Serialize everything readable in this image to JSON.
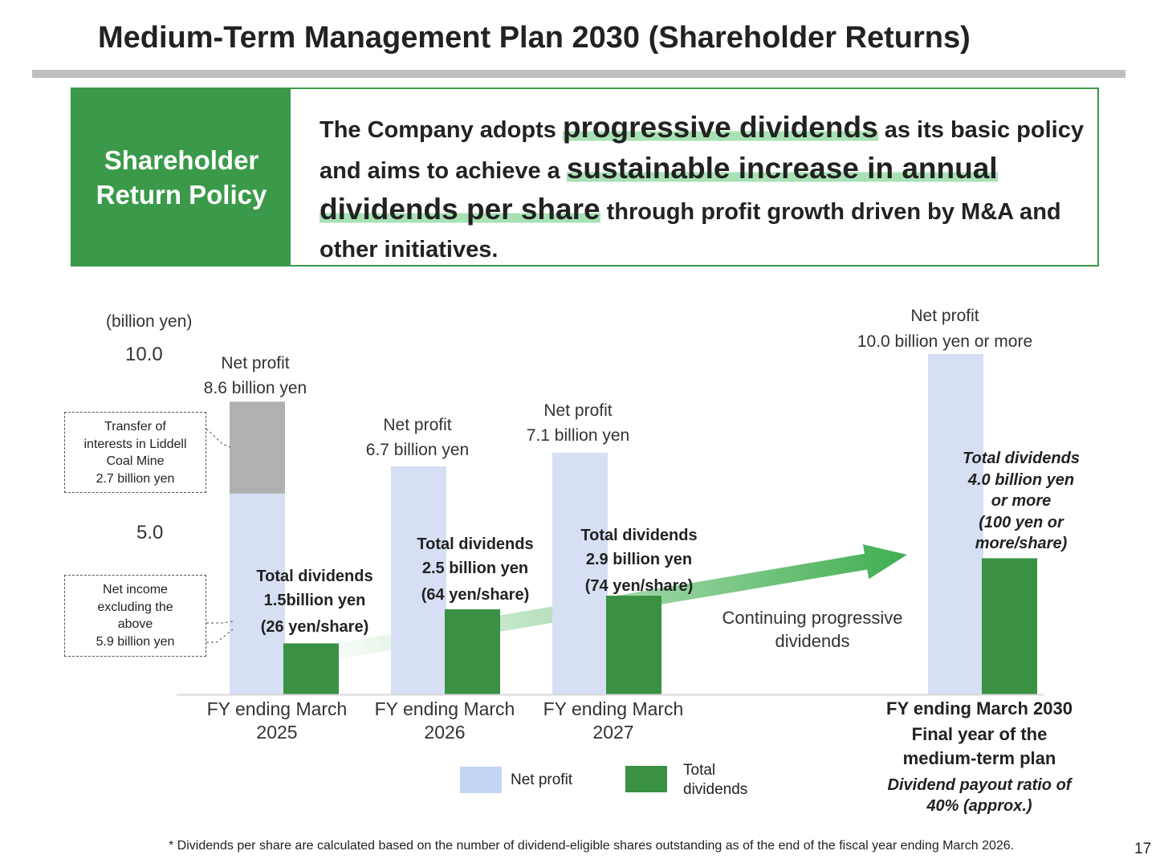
{
  "title": "Medium-Term Management Plan 2030 (Shareholder Returns)",
  "policy": {
    "heading_line1": "Shareholder",
    "heading_line2": "Return Policy",
    "t1": "The Company adopts ",
    "h1": "progressive dividends",
    "t2": " as its basic policy and aims to achieve a ",
    "h2": "sustainable increase in annual dividends per share",
    "t3": " through profit growth driven by M&A and other initiatives."
  },
  "colors": {
    "net_profit": "#d6dff3",
    "legend_net_profit": "#c3d5f5",
    "dividends": "#3a9144",
    "liddell": "#b0b0b0",
    "arrow": "#3fae50",
    "accent": "#3a9a4a"
  },
  "chart_data": {
    "type": "bar",
    "unit_label": "(billion yen)",
    "ylim": [
      0,
      10.0
    ],
    "y_ticks": [
      "5.0",
      "10.0"
    ],
    "categories": [
      {
        "line1": "FY ending March",
        "line2": "2025"
      },
      {
        "line1": "FY ending March",
        "line2": "2026"
      },
      {
        "line1": "FY ending March",
        "line2": "2027"
      },
      {
        "line1": "FY ending March 2030",
        "line2": "Final year of the",
        "line3": "medium-term plan"
      }
    ],
    "series": [
      {
        "name": "Net profit",
        "values": [
          8.6,
          6.7,
          7.1,
          10.0
        ]
      },
      {
        "name": "Total dividends",
        "values": [
          1.5,
          2.5,
          2.9,
          4.0
        ]
      }
    ],
    "fy2025_breakdown": {
      "net_income_excluding": 5.9,
      "liddell_transfer": 2.7
    },
    "net_profit_labels": [
      {
        "line1": "Net profit",
        "line2": "8.6 billion yen"
      },
      {
        "line1": "Net profit",
        "line2": "6.7 billion yen"
      },
      {
        "line1": "Net profit",
        "line2": "7.1 billion yen"
      },
      {
        "line1": "Net profit",
        "line2": "10.0 billion yen or more"
      }
    ],
    "dividend_labels": [
      {
        "line1": "Total dividends",
        "line2": "1.5billion yen",
        "line3": "(26 yen/share)"
      },
      {
        "line1": "Total dividends",
        "line2": "2.5 billion yen",
        "line3": "(64 yen/share)"
      },
      {
        "line1": "Total dividends",
        "line2": "2.9 billion yen",
        "line3": "(74 yen/share)"
      },
      {
        "line1": "Total dividends",
        "line2": "4.0 billion yen",
        "line3": "or more",
        "line4": "(100 yen or",
        "line5": "more/share)"
      }
    ],
    "annotations": {
      "liddell": {
        "line1": "Transfer of",
        "line2": "interests in Liddell",
        "line3": "Coal Mine",
        "line4": "2.7 billion yen"
      },
      "excluding": {
        "line1": "Net income",
        "line2": "excluding the",
        "line3": "above",
        "line4": "5.9 billion yen"
      },
      "arrow_line1": "Continuing progressive",
      "arrow_line2": "dividends",
      "payout_line1": "Dividend payout ratio of",
      "payout_line2": "40% (approx.)"
    },
    "legend": [
      {
        "label": "Net profit"
      },
      {
        "label_line1": "Total",
        "label_line2": "dividends"
      }
    ]
  },
  "footnote": "* Dividends per share are calculated based on the number of dividend-eligible shares outstanding as of the end of the fiscal year ending March 2026.",
  "page_number": "17"
}
